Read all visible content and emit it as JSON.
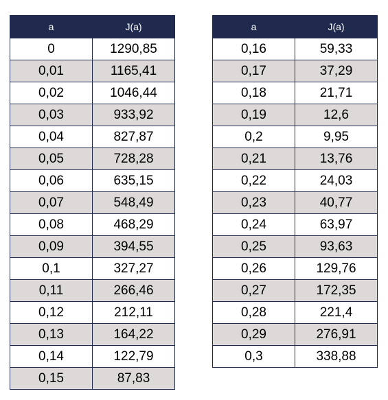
{
  "tables": [
    {
      "headers": [
        "a",
        "J(a)"
      ],
      "rows": [
        [
          "0",
          "1290,85"
        ],
        [
          "0,01",
          "1165,41"
        ],
        [
          "0,02",
          "1046,44"
        ],
        [
          "0,03",
          "933,92"
        ],
        [
          "0,04",
          "827,87"
        ],
        [
          "0,05",
          "728,28"
        ],
        [
          "0,06",
          "635,15"
        ],
        [
          "0,07",
          "548,49"
        ],
        [
          "0,08",
          "468,29"
        ],
        [
          "0,09",
          "394,55"
        ],
        [
          "0,1",
          "327,27"
        ],
        [
          "0,11",
          "266,46"
        ],
        [
          "0,12",
          "212,11"
        ],
        [
          "0,13",
          "164,22"
        ],
        [
          "0,14",
          "122,79"
        ],
        [
          "0,15",
          "87,83"
        ]
      ]
    },
    {
      "headers": [
        "a",
        "J(a)"
      ],
      "rows": [
        [
          "0,16",
          "59,33"
        ],
        [
          "0,17",
          "37,29"
        ],
        [
          "0,18",
          "21,71"
        ],
        [
          "0,19",
          "12,6"
        ],
        [
          "0,2",
          "9,95"
        ],
        [
          "0,21",
          "13,76"
        ],
        [
          "0,22",
          "24,03"
        ],
        [
          "0,23",
          "40,77"
        ],
        [
          "0,24",
          "63,97"
        ],
        [
          "0,25",
          "93,63"
        ],
        [
          "0,26",
          "129,76"
        ],
        [
          "0,27",
          "172,35"
        ],
        [
          "0,28",
          "221,4"
        ],
        [
          "0,29",
          "276,91"
        ],
        [
          "0,3",
          "338,88"
        ]
      ]
    }
  ],
  "colors": {
    "header_background": "#1f2a4e",
    "header_text": "#ffffff",
    "stripe_row": "#dcd9d8",
    "plain_row": "#ffffff",
    "border": "#1f2a4e"
  }
}
